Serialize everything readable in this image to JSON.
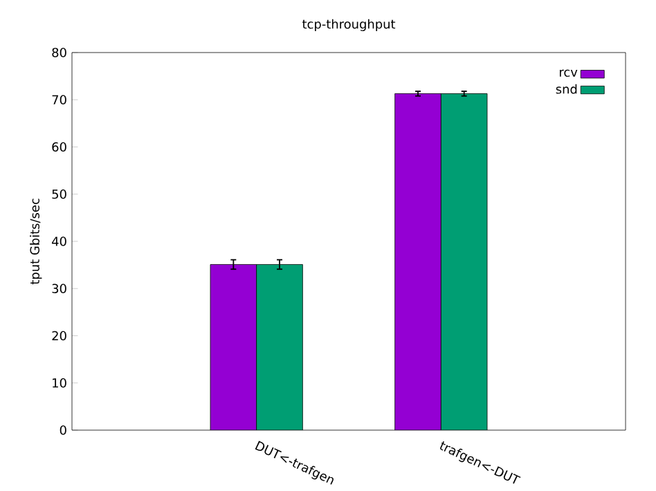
{
  "chart_data": {
    "type": "bar",
    "title": "tcp-throughput",
    "ylabel": "tput Gbits/sec",
    "categories": [
      "DUT<-trafgen",
      "trafgen<-DUT"
    ],
    "series": [
      {
        "name": "rcv",
        "color": "#9400d3",
        "values": [
          35.1,
          71.3
        ],
        "errors": [
          1,
          0.5
        ]
      },
      {
        "name": "snd",
        "color": "#009e73",
        "values": [
          35.1,
          71.3
        ],
        "errors": [
          1,
          0.5
        ]
      }
    ],
    "ylim": [
      0,
      80
    ],
    "yticks": [
      0,
      10,
      20,
      30,
      40,
      50,
      60,
      70,
      80
    ],
    "legend": "top right"
  }
}
